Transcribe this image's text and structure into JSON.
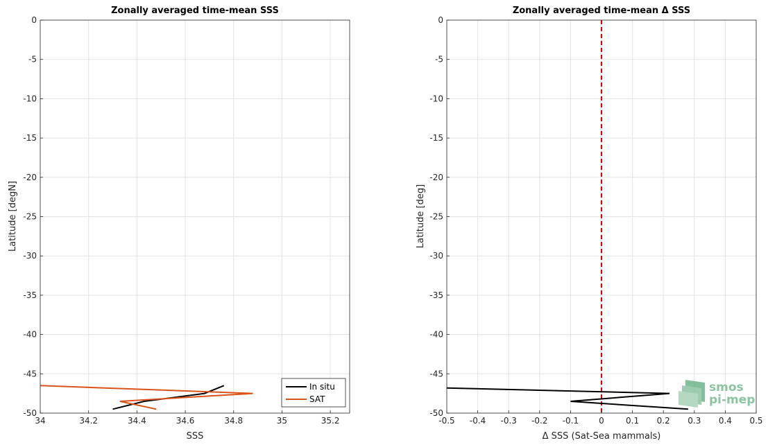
{
  "chart_data": [
    {
      "type": "line",
      "title": "Zonally averaged time-mean SSS",
      "xlabel": "SSS",
      "ylabel": "Latitude [degN]",
      "xlim": [
        34,
        35.28
      ],
      "ylim": [
        -50,
        0
      ],
      "xticks": [
        34,
        34.2,
        34.4,
        34.6,
        34.8,
        35,
        35.2
      ],
      "xtick_labels": [
        "34",
        "34.2",
        "34.4",
        "34.6",
        "34.8",
        "35",
        "35.2"
      ],
      "yticks": [
        0,
        -5,
        -10,
        -15,
        -20,
        -25,
        -30,
        -35,
        -40,
        -45,
        -50
      ],
      "ytick_labels": [
        "0",
        "-5",
        "-10",
        "-15",
        "-20",
        "-25",
        "-30",
        "-35",
        "-40",
        "-45",
        "-50"
      ],
      "grid": true,
      "legend": "bottom-right",
      "series": [
        {
          "name": "In situ",
          "color": "#000000",
          "points": [
            [
              34.76,
              -46.5
            ],
            [
              34.68,
              -47.5
            ],
            [
              34.43,
              -48.5
            ],
            [
              34.3,
              -49.5
            ]
          ]
        },
        {
          "name": "SAT",
          "color": "#d95319",
          "points": [
            [
              34.0,
              -46.5
            ],
            [
              34.88,
              -47.5
            ],
            [
              34.33,
              -48.5
            ],
            [
              34.48,
              -49.5
            ]
          ]
        }
      ]
    },
    {
      "type": "line",
      "title": "Zonally averaged time-mean Δ SSS",
      "xlabel": "Δ SSS (Sat-Sea mammals)",
      "ylabel": "Latitude [deg]",
      "xlim": [
        -0.5,
        0.5
      ],
      "ylim": [
        -50,
        0
      ],
      "xticks": [
        -0.5,
        -0.4,
        -0.3,
        -0.2,
        -0.1,
        0,
        0.1,
        0.2,
        0.3,
        0.4,
        0.5
      ],
      "xtick_labels": [
        "-0.5",
        "-0.4",
        "-0.3",
        "-0.2",
        "-0.1",
        "0",
        "0.1",
        "0.2",
        "0.3",
        "0.4",
        "0.5"
      ],
      "yticks": [
        0,
        -5,
        -10,
        -15,
        -20,
        -25,
        -30,
        -35,
        -40,
        -45,
        -50
      ],
      "ytick_labels": [
        "0",
        "-5",
        "-10",
        "-15",
        "-20",
        "-25",
        "-30",
        "-35",
        "-40",
        "-45",
        "-50"
      ],
      "grid": true,
      "reference_line": {
        "x": 0,
        "color": "#e00000",
        "style": "dashed"
      },
      "series": [
        {
          "color": "#000000",
          "points": [
            [
              -0.5,
              -46.8
            ],
            [
              0.22,
              -47.5
            ],
            [
              -0.1,
              -48.5
            ],
            [
              0.28,
              -49.5
            ]
          ]
        }
      ]
    }
  ],
  "logo": {
    "line1": "smos",
    "line2": "pi-mep"
  }
}
